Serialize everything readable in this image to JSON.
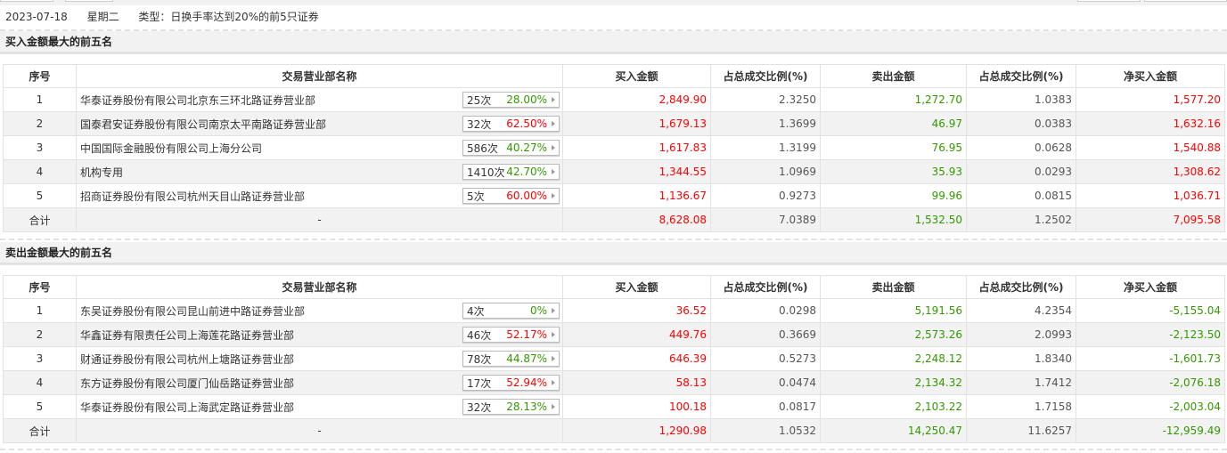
{
  "header": {
    "date": "2023-07-18",
    "weekday": "星期二",
    "type": "类型：日换手率达到20%的前5只证券"
  },
  "columns": [
    "序号",
    "交易营业部名称",
    "买入金额",
    "占总成交比例(%)",
    "卖出金额",
    "占总成交比例(%)",
    "净买入金额"
  ],
  "colors": {
    "up": "#ff0000",
    "down": "#339900"
  },
  "sections": [
    {
      "title": "买入金额最大的前五名",
      "rows": [
        {
          "no": "1",
          "name": "华泰证券股份有限公司北京东三环北路证券营业部",
          "count": "25次",
          "rate": "28.00%",
          "rate_color": "green",
          "buy": "2,849.90",
          "buy_pct": "2.3250",
          "sell": "1,272.70",
          "sell_pct": "1.0383",
          "net": "1,577.20",
          "net_color": "red"
        },
        {
          "no": "2",
          "name": "国泰君安证券股份有限公司南京太平南路证券营业部",
          "count": "32次",
          "rate": "62.50%",
          "rate_color": "red",
          "buy": "1,679.13",
          "buy_pct": "1.3699",
          "sell": "46.97",
          "sell_pct": "0.0383",
          "net": "1,632.16",
          "net_color": "red"
        },
        {
          "no": "3",
          "name": "中国国际金融股份有限公司上海分公司",
          "count": "586次",
          "rate": "40.27%",
          "rate_color": "green",
          "buy": "1,617.83",
          "buy_pct": "1.3199",
          "sell": "76.95",
          "sell_pct": "0.0628",
          "net": "1,540.88",
          "net_color": "red"
        },
        {
          "no": "4",
          "name": "机构专用",
          "count": "1410次",
          "rate": "42.70%",
          "rate_color": "green",
          "buy": "1,344.55",
          "buy_pct": "1.0969",
          "sell": "35.93",
          "sell_pct": "0.0293",
          "net": "1,308.62",
          "net_color": "red"
        },
        {
          "no": "5",
          "name": "招商证券股份有限公司杭州天目山路证券营业部",
          "count": "5次",
          "rate": "60.00%",
          "rate_color": "red",
          "buy": "1,136.67",
          "buy_pct": "0.9273",
          "sell": "99.96",
          "sell_pct": "0.0815",
          "net": "1,036.71",
          "net_color": "red"
        }
      ],
      "total": {
        "label": "合计",
        "name": "-",
        "buy": "8,628.08",
        "buy_pct": "7.0389",
        "sell": "1,532.50",
        "sell_pct": "1.2502",
        "net": "7,095.58",
        "net_color": "red"
      }
    },
    {
      "title": "卖出金额最大的前五名",
      "rows": [
        {
          "no": "1",
          "name": "东吴证券股份有限公司昆山前进中路证券营业部",
          "count": "4次",
          "rate": "0%",
          "rate_color": "green",
          "buy": "36.52",
          "buy_pct": "0.0298",
          "sell": "5,191.56",
          "sell_pct": "4.2354",
          "net": "-5,155.04",
          "net_color": "green"
        },
        {
          "no": "2",
          "name": "华鑫证券有限责任公司上海莲花路证券营业部",
          "count": "46次",
          "rate": "52.17%",
          "rate_color": "red",
          "buy": "449.76",
          "buy_pct": "0.3669",
          "sell": "2,573.26",
          "sell_pct": "2.0993",
          "net": "-2,123.50",
          "net_color": "green"
        },
        {
          "no": "3",
          "name": "财通证券股份有限公司杭州上塘路证券营业部",
          "count": "78次",
          "rate": "44.87%",
          "rate_color": "green",
          "buy": "646.39",
          "buy_pct": "0.5273",
          "sell": "2,248.12",
          "sell_pct": "1.8340",
          "net": "-1,601.73",
          "net_color": "green"
        },
        {
          "no": "4",
          "name": "东方证券股份有限公司厦门仙岳路证券营业部",
          "count": "17次",
          "rate": "52.94%",
          "rate_color": "red",
          "buy": "58.13",
          "buy_pct": "0.0474",
          "sell": "2,134.32",
          "sell_pct": "1.7412",
          "net": "-2,076.18",
          "net_color": "green"
        },
        {
          "no": "5",
          "name": "华泰证券股份有限公司上海武定路证券营业部",
          "count": "32次",
          "rate": "28.13%",
          "rate_color": "green",
          "buy": "100.18",
          "buy_pct": "0.0817",
          "sell": "2,103.22",
          "sell_pct": "1.7158",
          "net": "-2,003.04",
          "net_color": "green"
        }
      ],
      "total": {
        "label": "合计",
        "name": "-",
        "buy": "1,290.98",
        "buy_pct": "1.0532",
        "sell": "14,250.47",
        "sell_pct": "11.6257",
        "net": "-12,959.49",
        "net_color": "green"
      }
    }
  ]
}
